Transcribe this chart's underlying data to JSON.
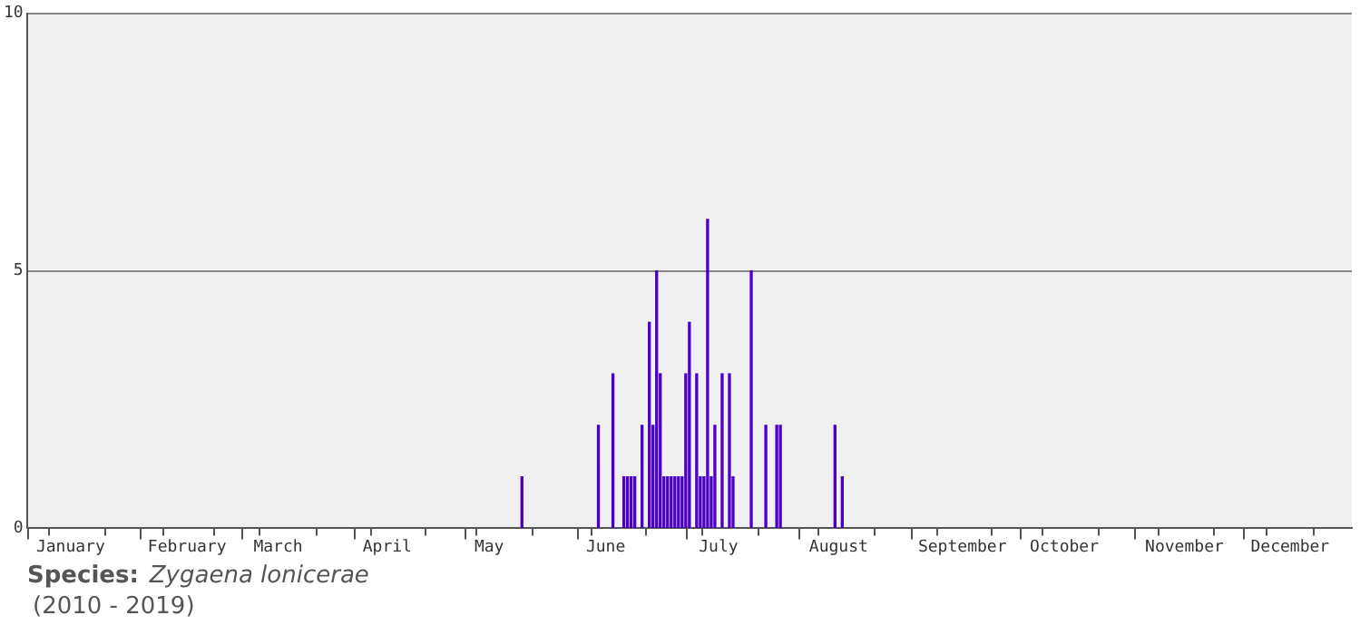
{
  "chart_data": {
    "type": "bar",
    "title": "Species:",
    "subtitle": "Zygaena lonicerae",
    "annotations": [
      "(2010 - 2019)"
    ],
    "x": [
      "--05-17",
      "--06-07",
      "--06-11",
      "--06-14",
      "--06-15",
      "--06-16",
      "--06-17",
      "--06-19",
      "--06-21",
      "--06-22",
      "--06-23",
      "--06-24",
      "--06-25",
      "--06-26",
      "--06-27",
      "--06-28",
      "--06-29",
      "--06-30",
      "--07-01",
      "--07-02",
      "--07-04",
      "--07-05",
      "--07-06",
      "--07-07",
      "--07-08",
      "--07-09",
      "--07-11",
      "--07-13",
      "--07-14",
      "--07-19",
      "--07-23",
      "--07-26",
      "--07-27",
      "--08-11",
      "--08-13"
    ],
    "values": [
      1,
      2,
      3,
      1,
      1,
      1,
      1,
      2,
      4,
      2,
      5,
      3,
      1,
      1,
      1,
      1,
      1,
      1,
      3,
      4,
      3,
      1,
      1,
      6,
      1,
      2,
      3,
      3,
      1,
      5,
      2,
      2,
      2,
      2,
      1
    ],
    "color": "#4b00c4",
    "xlim": [
      "--01-01",
      "--12-31"
    ],
    "xticks": [
      {
        "value": "--01-01",
        "label": null
      },
      {
        "value": "--01-13",
        "label": "January"
      },
      {
        "value": "--02-01",
        "label": null
      },
      {
        "value": "--02-14",
        "label": "February"
      },
      {
        "value": "--03-01",
        "label": null
      },
      {
        "value": "--03-11",
        "label": "March"
      },
      {
        "value": "--04-01",
        "label": null
      },
      {
        "value": "--04-10",
        "label": "April"
      },
      {
        "value": "--05-01",
        "label": null
      },
      {
        "value": "--05-08",
        "label": "May"
      },
      {
        "value": "--06-01",
        "label": null
      },
      {
        "value": "--06-09",
        "label": "June"
      },
      {
        "value": "--07-01",
        "label": null
      },
      {
        "value": "--07-10",
        "label": "July"
      },
      {
        "value": "--08-01",
        "label": null
      },
      {
        "value": "--08-12",
        "label": "August"
      },
      {
        "value": "--09-01",
        "label": null
      },
      {
        "value": "--09-15",
        "label": "September"
      },
      {
        "value": "--10-01",
        "label": null
      },
      {
        "value": "--10-13",
        "label": "October"
      },
      {
        "value": "--11-01",
        "label": null
      },
      {
        "value": "--11-15",
        "label": "November"
      },
      {
        "value": "--12-01",
        "label": null
      },
      {
        "value": "--12-14",
        "label": "December"
      }
    ],
    "ylim": [
      0,
      10
    ],
    "yticks": [
      0,
      5,
      10
    ],
    "grid": "y"
  }
}
